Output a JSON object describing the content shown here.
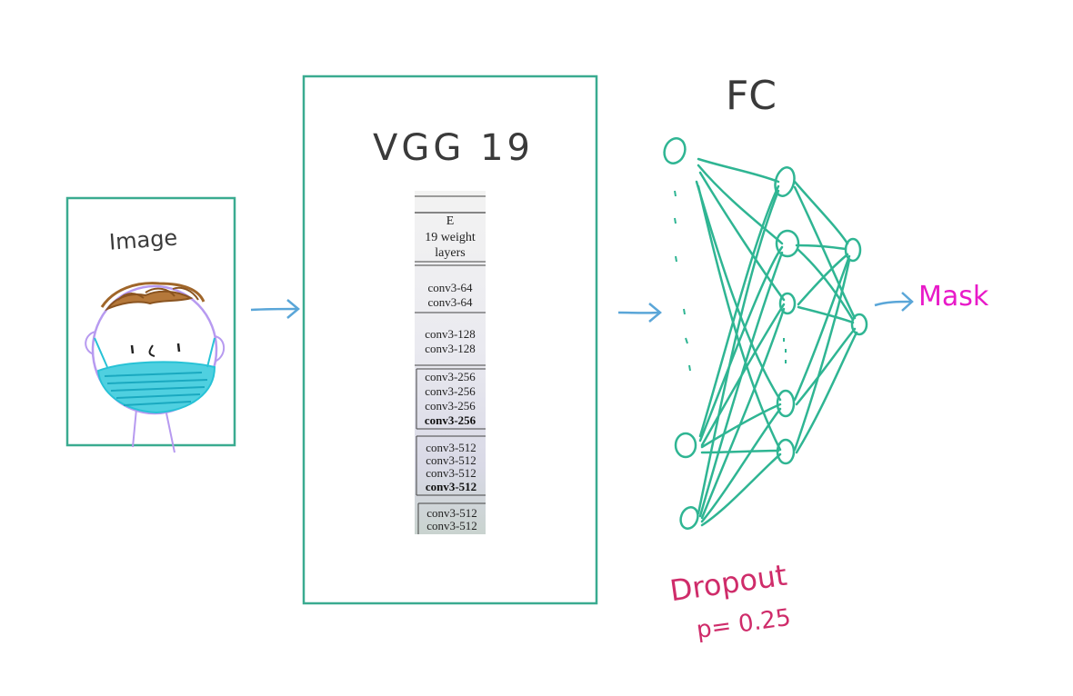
{
  "colors": {
    "box": "#3aab90",
    "arrow": "#5aa6d8",
    "nn": "#2fb593",
    "dropout": "#cf2c6a",
    "mask": "#e81ac8",
    "text": "#3a3a3a",
    "hair": "#a0662a",
    "face": "#b79af0",
    "maskfill": "#27c2d6"
  },
  "image_panel": {
    "label": "Image"
  },
  "vgg_panel": {
    "title": "VGG 19",
    "table": {
      "header": [
        "E",
        "19 weight",
        "layers"
      ],
      "groups": [
        {
          "layers": [
            "conv3-64",
            "conv3-64"
          ],
          "bold_last": false
        },
        {
          "layers": [
            "conv3-128",
            "conv3-128"
          ],
          "bold_last": false
        },
        {
          "layers": [
            "conv3-256",
            "conv3-256",
            "conv3-256",
            "conv3-256"
          ],
          "bold_last": true
        },
        {
          "layers": [
            "conv3-512",
            "conv3-512",
            "conv3-512",
            "conv3-512"
          ],
          "bold_last": true
        },
        {
          "layers": [
            "conv3-512",
            "conv3-512"
          ],
          "bold_last": false
        }
      ]
    }
  },
  "fc": {
    "title": "FC",
    "dropout_label": "Dropout",
    "dropout_value": "p= 0.25"
  },
  "output": {
    "label": "Mask"
  }
}
